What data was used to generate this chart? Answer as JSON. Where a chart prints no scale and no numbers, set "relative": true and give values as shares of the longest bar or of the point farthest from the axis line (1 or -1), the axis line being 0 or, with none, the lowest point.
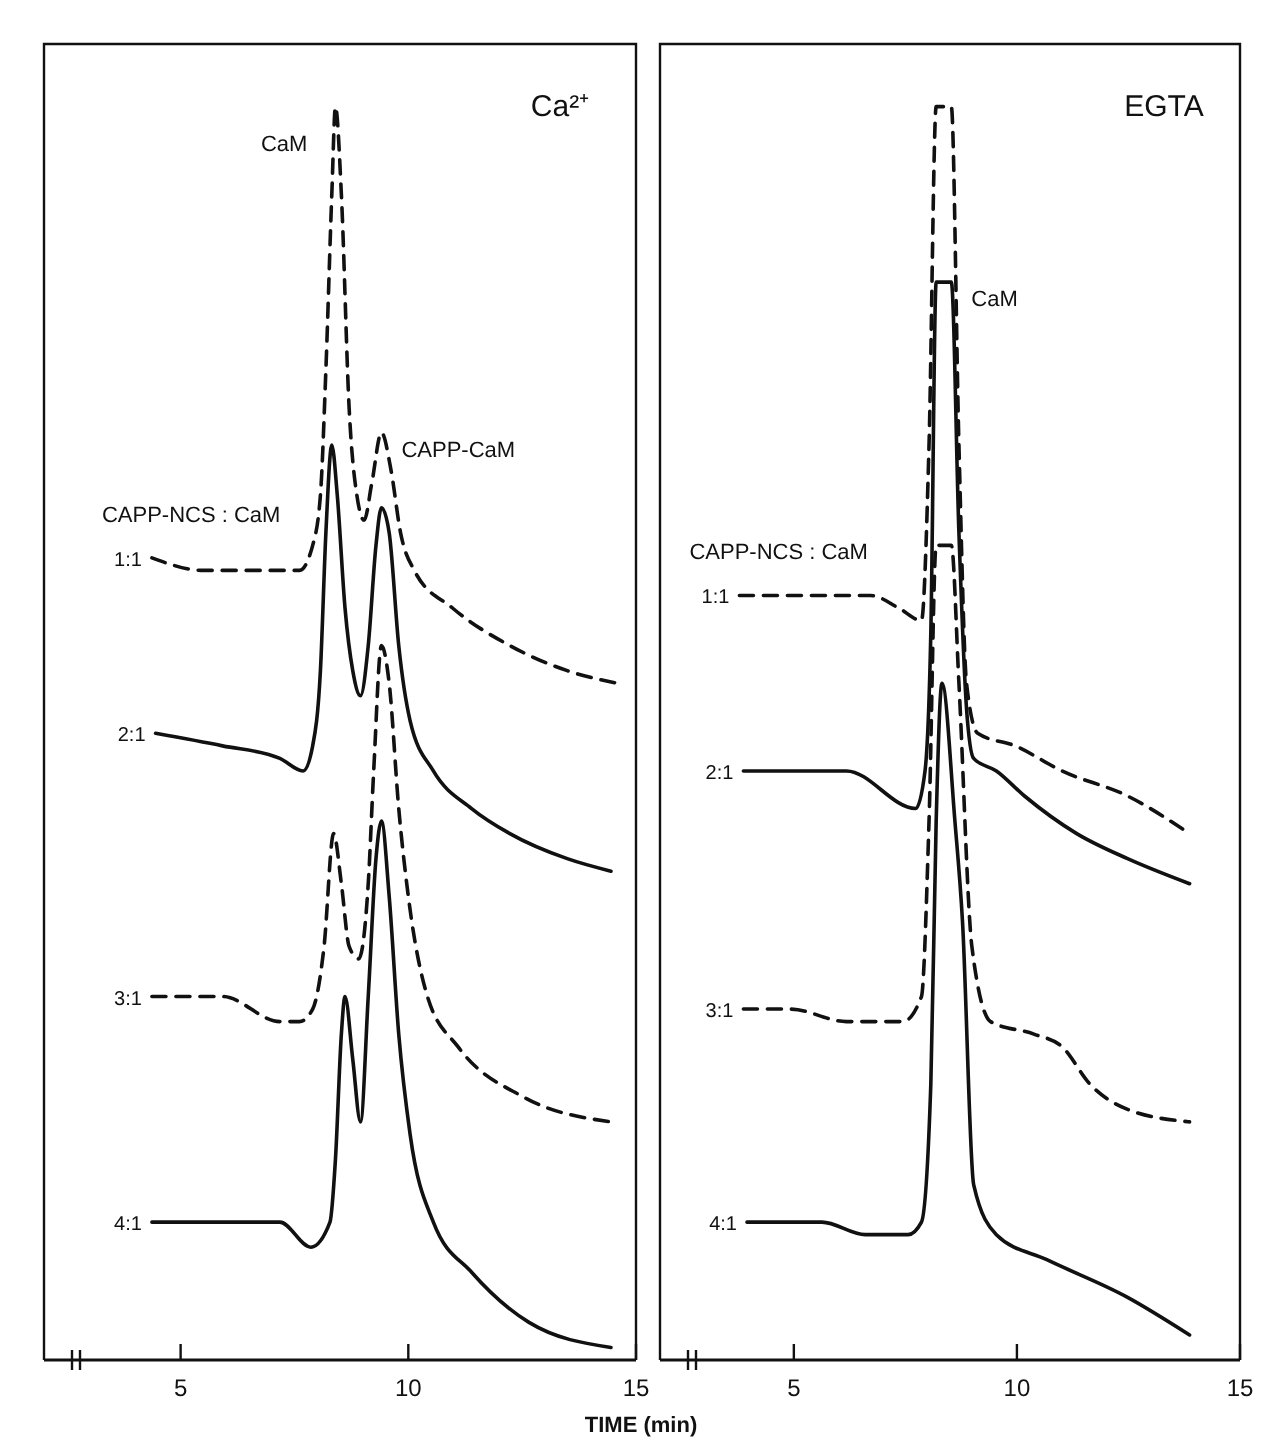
{
  "chart_data": [
    {
      "type": "line",
      "title": "Ca²⁺",
      "xlabel": "TIME (min)",
      "relative": true,
      "xlim": [
        2,
        15
      ],
      "xticks": [
        5,
        10,
        15
      ],
      "tick_labels": "x",
      "grid": false,
      "annotations": [
        {
          "text": "CaM",
          "x": 8.4,
          "y": 1.0
        },
        {
          "text": "CAPP-CaM",
          "x": 9.41,
          "y": 0.74
        },
        "CAPP-NCS : CaM"
      ],
      "series": [
        {
          "name": "1:1",
          "color": "#111111",
          "line_style": "dashed",
          "x": [
            4.37,
            5.5,
            6.76,
            7.27,
            7.61,
            7.9,
            8.07,
            8.19,
            8.32,
            8.4,
            8.53,
            8.7,
            8.87,
            9.03,
            9.2,
            9.41,
            9.62,
            9.83,
            10.13,
            10.97,
            12.23,
            13.49,
            14.58
          ],
          "values": [
            0.64,
            0.63,
            0.63,
            0.63,
            0.63,
            0.65,
            0.69,
            0.79,
            0.93,
            1.0,
            0.93,
            0.76,
            0.69,
            0.67,
            0.7,
            0.74,
            0.71,
            0.66,
            0.63,
            0.6,
            0.57,
            0.55,
            0.54
          ]
        },
        {
          "name": "2:1",
          "color": "#111111",
          "line_style": "solid",
          "x": [
            4.45,
            5.92,
            7.18,
            7.69,
            7.9,
            8.07,
            8.19,
            8.32,
            8.44,
            8.61,
            8.78,
            8.95,
            9.12,
            9.29,
            9.41,
            9.58,
            9.79,
            10.04,
            10.55,
            11.39,
            12.23,
            13.49,
            14.45
          ],
          "values": [
            0.5,
            0.49,
            0.48,
            0.47,
            0.49,
            0.55,
            0.66,
            0.73,
            0.69,
            0.6,
            0.55,
            0.53,
            0.57,
            0.65,
            0.68,
            0.66,
            0.57,
            0.51,
            0.47,
            0.44,
            0.42,
            0.4,
            0.39
          ]
        },
        {
          "name": "3:1",
          "color": "#111111",
          "line_style": "dashed",
          "x": [
            4.37,
            5.92,
            7.18,
            7.61,
            7.9,
            8.15,
            8.36,
            8.53,
            8.7,
            8.91,
            9.12,
            9.24,
            9.41,
            9.58,
            9.79,
            10,
            10.42,
            11.09,
            12.52,
            14.45
          ],
          "values": [
            0.29,
            0.29,
            0.27,
            0.27,
            0.28,
            0.33,
            0.42,
            0.38,
            0.33,
            0.32,
            0.38,
            0.47,
            0.57,
            0.54,
            0.44,
            0.37,
            0.29,
            0.25,
            0.21,
            0.19
          ]
        },
        {
          "name": "4:1",
          "color": "#111111",
          "line_style": "solid",
          "x": [
            4.37,
            5.5,
            6.34,
            7.18,
            7.86,
            8.28,
            8.4,
            8.53,
            8.61,
            8.78,
            8.95,
            9.12,
            9.29,
            9.41,
            9.58,
            9.79,
            10.04,
            10.55,
            11.39,
            12.65,
            14.45
          ],
          "values": [
            0.11,
            0.11,
            0.11,
            0.11,
            0.09,
            0.11,
            0.16,
            0.26,
            0.29,
            0.24,
            0.19,
            0.29,
            0.4,
            0.43,
            0.37,
            0.26,
            0.18,
            0.11,
            0.07,
            0.03,
            0.01
          ]
        }
      ]
    },
    {
      "type": "line",
      "title": "EGTA",
      "relative": true,
      "xlim": [
        2,
        15
      ],
      "xticks": [
        5,
        10,
        15
      ],
      "tick_labels": "x",
      "grid": false,
      "annotations": [
        {
          "text": "CaM",
          "x": 8.53,
          "y": 0.86
        },
        "CAPP-NCS : CaM"
      ],
      "series": [
        {
          "name": "1:1",
          "color": "#111111",
          "line_style": "dashed",
          "x": [
            3.78,
            4.92,
            5.76,
            6.72,
            7.35,
            7.86,
            8.03,
            8.19,
            8.53,
            8.7,
            8.87,
            9.12,
            9.96,
            11.01,
            12.48,
            13.87
          ],
          "values": [
            0.61,
            0.61,
            0.61,
            0.61,
            0.6,
            0.59,
            0.73,
            1.0,
            1.0,
            0.73,
            0.54,
            0.5,
            0.49,
            0.47,
            0.45,
            0.42
          ]
        },
        {
          "name": "2:1",
          "color": "#111111",
          "line_style": "solid",
          "x": [
            3.87,
            4.92,
            6.18,
            7.73,
            7.94,
            8.07,
            8.19,
            8.53,
            8.7,
            8.87,
            9.03,
            9.54,
            10.17,
            11.34,
            12.48,
            13.87
          ],
          "values": [
            0.47,
            0.47,
            0.47,
            0.44,
            0.47,
            0.58,
            0.86,
            0.86,
            0.66,
            0.52,
            0.48,
            0.47,
            0.45,
            0.42,
            0.4,
            0.38
          ]
        },
        {
          "name": "3:1",
          "color": "#111111",
          "line_style": "dashed",
          "x": [
            3.87,
            4.92,
            6.18,
            7.44,
            7.86,
            8.03,
            8.19,
            8.53,
            8.7,
            8.99,
            9.41,
            10.38,
            11.01,
            11.64,
            12.48,
            13.87
          ],
          "values": [
            0.28,
            0.28,
            0.27,
            0.27,
            0.29,
            0.43,
            0.65,
            0.65,
            0.54,
            0.33,
            0.27,
            0.26,
            0.25,
            0.22,
            0.2,
            0.19
          ]
        },
        {
          "name": "4:1",
          "color": "#111111",
          "line_style": "solid",
          "x": [
            3.95,
            4.92,
            5.63,
            6.6,
            7.56,
            7.86,
            8.07,
            8.19,
            8.32,
            8.61,
            8.78,
            9.03,
            9.54,
            10.67,
            12.48,
            13.87
          ],
          "values": [
            0.11,
            0.11,
            0.11,
            0.1,
            0.1,
            0.11,
            0.22,
            0.43,
            0.54,
            0.43,
            0.35,
            0.14,
            0.1,
            0.08,
            0.05,
            0.02
          ]
        }
      ]
    }
  ]
}
